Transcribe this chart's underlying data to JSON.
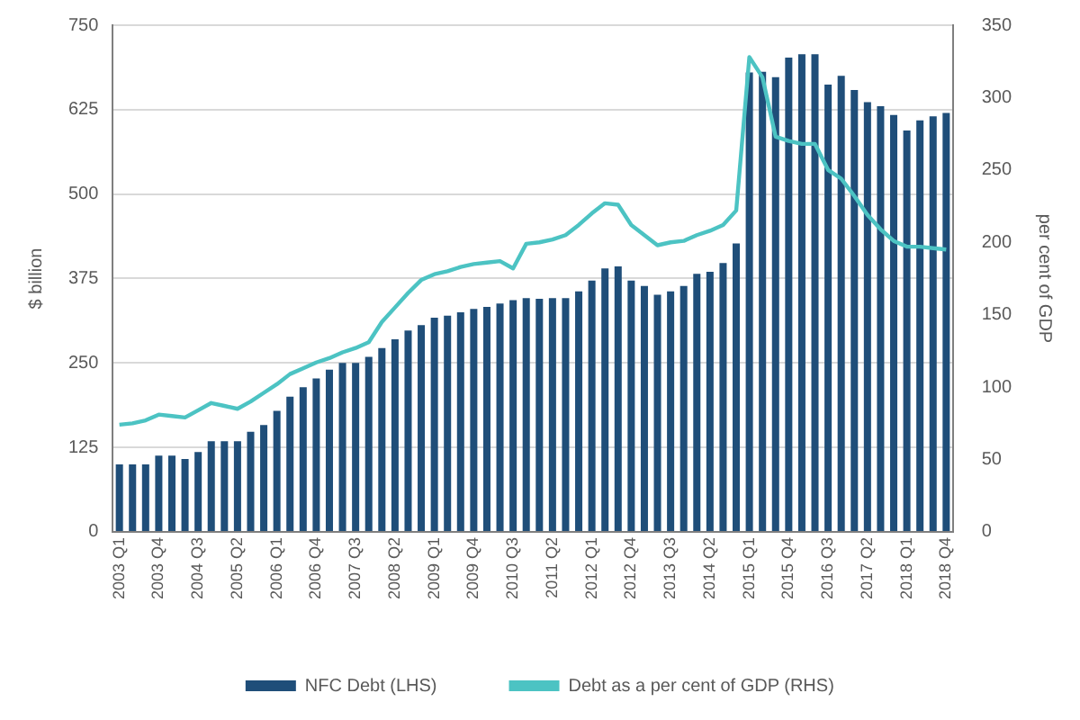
{
  "chart_data": {
    "type": "bar",
    "ylabel": "$ billion",
    "y2label": "per cent of GDP",
    "categories": [
      "2003 Q1",
      null,
      null,
      "2003 Q4",
      null,
      null,
      "2004 Q3",
      null,
      null,
      "2005 Q2",
      null,
      null,
      "2006 Q1",
      null,
      null,
      "2006 Q4",
      null,
      null,
      "2007 Q3",
      null,
      null,
      "2008 Q2",
      null,
      null,
      "2009 Q1",
      null,
      null,
      "2009 Q4",
      null,
      null,
      "2010 Q3",
      null,
      null,
      "2011 Q2",
      null,
      null,
      "2012 Q1",
      null,
      null,
      "2012 Q4",
      null,
      null,
      "2013 Q3",
      null,
      null,
      "2014 Q2",
      null,
      null,
      "2015 Q1",
      null,
      null,
      "2015 Q4",
      null,
      null,
      "2016 Q3",
      null,
      null,
      "2017 Q2",
      null,
      null,
      "2018 Q1",
      null,
      null,
      "2018 Q4"
    ],
    "series": [
      {
        "name": "NFC Debt (LHS)",
        "color": "#1f4e79",
        "values": [
          100,
          100,
          100,
          113,
          113,
          108,
          118,
          134,
          134,
          134,
          148,
          158,
          179,
          200,
          214,
          227,
          240,
          250,
          250,
          259,
          272,
          285,
          298,
          306,
          317,
          320,
          325,
          330,
          333,
          338,
          343,
          346,
          345,
          346,
          346,
          356,
          372,
          390,
          393,
          372,
          364,
          351,
          356,
          364,
          382,
          385,
          398,
          427,
          680,
          681,
          673,
          702,
          707,
          707,
          662,
          675,
          654,
          636,
          630,
          617,
          594,
          609,
          615,
          620
        ]
      },
      {
        "name": "Debt as a per cent of GDP (RHS)",
        "type": "line",
        "axis": "y2",
        "color": "#4cc3c3",
        "values": [
          74,
          75,
          77,
          81,
          80,
          79,
          84,
          89,
          87,
          85,
          90,
          96,
          102,
          109,
          113,
          117,
          120,
          124,
          127,
          131,
          145,
          155,
          165,
          174,
          178,
          180,
          183,
          185,
          186,
          187,
          182,
          199,
          200,
          202,
          205,
          212,
          220,
          227,
          226,
          212,
          205,
          198,
          200,
          201,
          205,
          208,
          212,
          222,
          328,
          314,
          273,
          270,
          268,
          268,
          250,
          244,
          232,
          219,
          209,
          201,
          197,
          197,
          196,
          195
        ]
      }
    ],
    "ylim": [
      0,
      750
    ],
    "yticks": [
      0,
      125,
      250,
      375,
      500,
      625,
      750
    ],
    "y2lim": [
      0,
      350
    ],
    "y2ticks": [
      0,
      50,
      100,
      150,
      200,
      250,
      300,
      350
    ],
    "grid": "y",
    "legend": "bottom",
    "marker": "none",
    "line_style": "solid"
  }
}
